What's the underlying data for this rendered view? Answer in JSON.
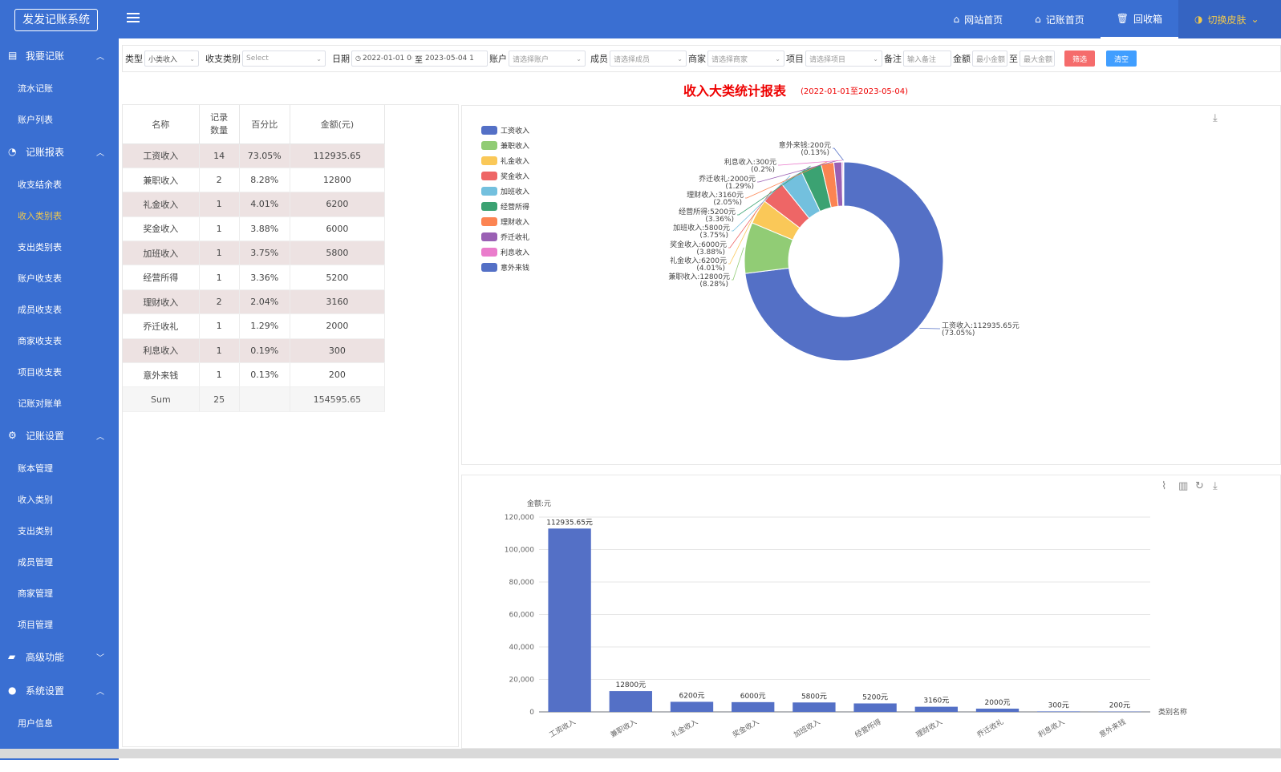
{
  "app": {
    "title": "发发记账系统"
  },
  "nav": [
    {
      "label": "网站首页",
      "icon": "home-icon"
    },
    {
      "label": "记账首页",
      "icon": "home-icon"
    },
    {
      "label": "回收箱",
      "icon": "trash-icon"
    },
    {
      "label": "切换皮肤",
      "icon": "palette-icon"
    }
  ],
  "sidebar": {
    "groups": [
      {
        "label": "我要记账",
        "icon": "ledger-icon",
        "items": [
          "流水记账",
          "账户列表"
        ]
      },
      {
        "label": "记账报表",
        "icon": "pie-icon",
        "items": [
          "收支结余表",
          "收入类别表",
          "支出类别表",
          "账户收支表",
          "成员收支表",
          "商家收支表",
          "项目收支表",
          "记账对账单"
        ]
      },
      {
        "label": "记账设置",
        "icon": "gear-icon",
        "items": [
          "账本管理",
          "收入类别",
          "支出类别",
          "成员管理",
          "商家管理",
          "项目管理"
        ]
      },
      {
        "label": "高级功能",
        "icon": "briefcase-icon",
        "items": []
      },
      {
        "label": "系统设置",
        "icon": "user-icon",
        "items": [
          "用户信息"
        ]
      }
    ],
    "active_item": "收入类别表"
  },
  "filters": {
    "type_label": "类型",
    "type_value": "小类收入",
    "category_label": "收支类别",
    "category_placeholder": "Select",
    "date_label": "日期",
    "date_start": "2022-01-01 0(",
    "date_sep": "至",
    "date_end": "2023-05-04 1{",
    "account_label": "账户",
    "account_placeholder": "请选择账户",
    "member_label": "成员",
    "member_placeholder": "请选择成员",
    "merchant_label": "商家",
    "merchant_placeholder": "请选择商家",
    "project_label": "项目",
    "project_placeholder": "请选择项目",
    "note_label": "备注",
    "note_placeholder": "输入备注",
    "amount_label": "金额",
    "amount_min_placeholder": "最小金额",
    "amount_sep": "至",
    "amount_max_placeholder": "最大金额",
    "filter_button": "筛选",
    "clear_button": "清空"
  },
  "report": {
    "title": "收入大类统计报表",
    "subtitle": "(2022-01-01至2023-05-04)"
  },
  "table": {
    "headers": [
      "名称",
      "记录数量",
      "百分比",
      "金额(元)"
    ],
    "rows": [
      [
        "工资收入",
        "14",
        "73.05%",
        "112935.65"
      ],
      [
        "兼职收入",
        "2",
        "8.28%",
        "12800"
      ],
      [
        "礼金收入",
        "1",
        "4.01%",
        "6200"
      ],
      [
        "奖金收入",
        "1",
        "3.88%",
        "6000"
      ],
      [
        "加班收入",
        "1",
        "3.75%",
        "5800"
      ],
      [
        "经营所得",
        "1",
        "3.36%",
        "5200"
      ],
      [
        "理财收入",
        "2",
        "2.04%",
        "3160"
      ],
      [
        "乔迁收礼",
        "1",
        "1.29%",
        "2000"
      ],
      [
        "利息收入",
        "1",
        "0.19%",
        "300"
      ],
      [
        "意外来钱",
        "1",
        "0.13%",
        "200"
      ]
    ],
    "sum": [
      "Sum",
      "25",
      "",
      "154595.65"
    ]
  },
  "chart_data": [
    {
      "type": "pie",
      "categories": [
        "工资收入",
        "兼职收入",
        "礼金收入",
        "奖金收入",
        "加班收入",
        "经营所得",
        "理财收入",
        "乔迁收礼",
        "利息收入",
        "意外来钱"
      ],
      "values": [
        112935.65,
        12800,
        6200,
        6000,
        5800,
        5200,
        3160,
        2000,
        300,
        200
      ],
      "labels": [
        "工资收入:112935.65元",
        "兼职收入:12800元",
        "礼金收入:6200元",
        "奖金收入:6000元",
        "加班收入:5800元",
        "经营所得:5200元",
        "理财收入:3160元",
        "乔迁收礼:2000元",
        "利息收入:300元",
        "意外来钱:200元"
      ],
      "percents": [
        "(73.05%)",
        "(8.28%)",
        "(4.01%)",
        "(3.88%)",
        "(3.75%)",
        "(3.36%)",
        "(2.05%)",
        "(1.29%)",
        "(0.2%)",
        "(0.13%)"
      ],
      "colors": [
        "#5470c6",
        "#91cc75",
        "#fac858",
        "#ee6666",
        "#73c0de",
        "#3ba272",
        "#fc8452",
        "#9a60b4",
        "#ea7ccc",
        "#5470c6"
      ],
      "legend": "top-left",
      "donut": true
    },
    {
      "type": "bar",
      "categories": [
        "工资收入",
        "兼职收入",
        "礼金收入",
        "奖金收入",
        "加班收入",
        "经营所得",
        "理财收入",
        "乔迁收礼",
        "利息收入",
        "意外来钱"
      ],
      "values": [
        112935.65,
        12800,
        6200,
        6000,
        5800,
        5200,
        3160,
        2000,
        300,
        200
      ],
      "value_labels": [
        "112935.65元",
        "12800元",
        "6200元",
        "6000元",
        "5800元",
        "5200元",
        "3160元",
        "2000元",
        "300元",
        "200元"
      ],
      "yticks": [
        "0",
        "20,000",
        "40,000",
        "60,000",
        "80,000",
        "100,000",
        "120,000"
      ],
      "ylabel": "金额:元",
      "xlabel": "类别名称",
      "ylim": [
        0,
        120000
      ],
      "color": "#5470c6",
      "grid": true
    }
  ]
}
